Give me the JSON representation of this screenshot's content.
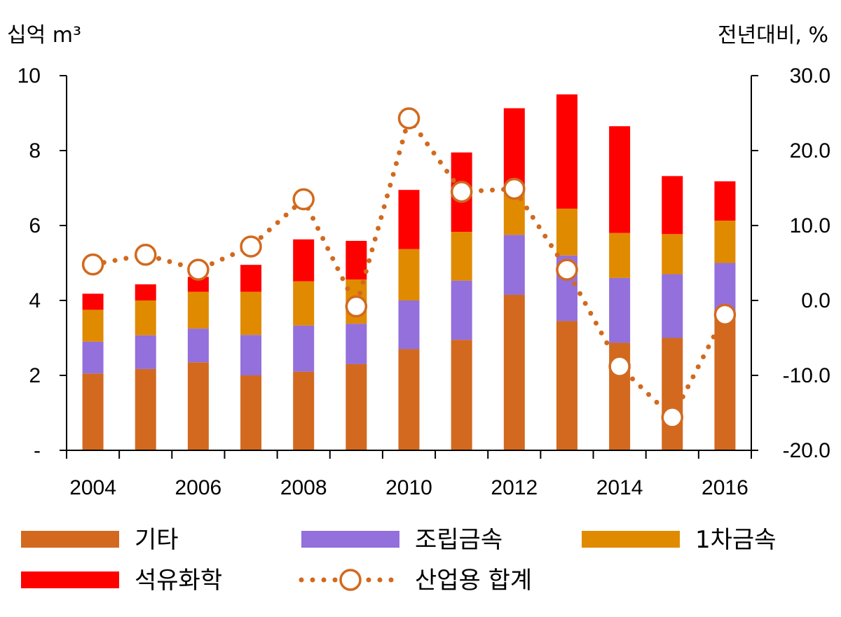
{
  "chart_data": {
    "type": "bar",
    "stacked": true,
    "categories": [
      "2004",
      "2005",
      "2006",
      "2007",
      "2008",
      "2009",
      "2010",
      "2011",
      "2012",
      "2013",
      "2014",
      "2015",
      "2016"
    ],
    "x_tick_labels": [
      "2004",
      "2006",
      "2008",
      "2010",
      "2012",
      "2014",
      "2016"
    ],
    "left_axis": {
      "unit_label": "십억 m³",
      "ylim": [
        0,
        10
      ],
      "tick_values": [
        0,
        2,
        4,
        6,
        8,
        10
      ],
      "tick_labels": [
        "-",
        "2",
        "4",
        "6",
        "8",
        "10"
      ]
    },
    "right_axis": {
      "unit_label": "전년대비, %",
      "ylim": [
        -20,
        30
      ],
      "tick_values": [
        -20,
        -10,
        0,
        10,
        20,
        30
      ],
      "tick_labels": [
        "-20.0",
        "-10.0",
        "0.0",
        "10.0",
        "20.0",
        "30.0"
      ]
    },
    "series": [
      {
        "name": "기타",
        "type": "bar",
        "color": "#D2691E",
        "values": [
          2.05,
          2.17,
          2.35,
          2.0,
          2.1,
          2.3,
          2.7,
          2.95,
          4.15,
          3.45,
          2.87,
          3.0,
          3.6
        ]
      },
      {
        "name": "조립금속",
        "type": "bar",
        "color": "#9370DB",
        "values": [
          0.85,
          0.9,
          0.9,
          1.08,
          1.23,
          1.08,
          1.3,
          1.58,
          1.6,
          1.75,
          1.73,
          1.7,
          1.4
        ]
      },
      {
        "name": "1차금속",
        "type": "bar",
        "color": "#E08A00",
        "values": [
          0.85,
          0.93,
          0.98,
          1.15,
          1.18,
          1.18,
          1.37,
          1.3,
          1.25,
          1.25,
          1.2,
          1.07,
          1.13
        ]
      },
      {
        "name": "석유화학",
        "type": "bar",
        "color": "#FF0000",
        "values": [
          0.43,
          0.43,
          0.4,
          0.72,
          1.12,
          1.03,
          1.58,
          2.12,
          2.13,
          3.05,
          2.85,
          1.55,
          1.05
        ]
      },
      {
        "name": "산업용 합계",
        "type": "line",
        "axis": "right",
        "color": "#D2691E",
        "values": [
          4.8,
          6.1,
          4.1,
          7.2,
          13.5,
          -0.8,
          24.3,
          14.5,
          14.9,
          4.1,
          -8.8,
          -15.6,
          -1.9
        ]
      }
    ],
    "legend": {
      "position": "bottom"
    }
  }
}
